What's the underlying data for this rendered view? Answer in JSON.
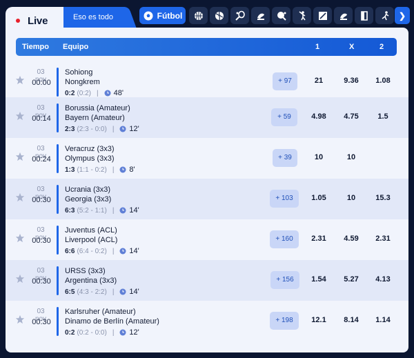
{
  "topbar": {
    "live_label": "Live",
    "eso_label": "Eso es todo",
    "futbol_label": "Fútbol",
    "sports": [
      "soccer-ball-icon",
      "basketball-icon",
      "volleyball-icon",
      "tennis-icon",
      "hockey-icon",
      "ping-pong-icon",
      "fencing-icon",
      "esports-icon",
      "baseball-icon",
      "handball-icon",
      "cricket-icon"
    ]
  },
  "header": {
    "tiempo": "Tiempo",
    "equipo": "Equipo",
    "col1": "1",
    "colx": "X",
    "col2": "2"
  },
  "matches": [
    {
      "date": "03 nov",
      "time": "00:00",
      "team1": "Sohiong",
      "team2": "Nongkrem",
      "score": "0:2",
      "score_detail": "(0:2)",
      "minute": "48'",
      "more": "+ 97",
      "odd1": "21",
      "oddx": "9.36",
      "odd2": "1.08"
    },
    {
      "date": "03 nov",
      "time": "00:14",
      "team1": "Borussia (Amateur)",
      "team2": "Bayern (Amateur)",
      "score": "2:3",
      "score_detail": "(2:3 - 0:0)",
      "minute": "12'",
      "more": "+ 59",
      "odd1": "4.98",
      "oddx": "4.75",
      "odd2": "1.5"
    },
    {
      "date": "03 nov",
      "time": "00:24",
      "team1": "Veracruz (3x3)",
      "team2": "Olympus (3x3)",
      "score": "1:3",
      "score_detail": "(1:1 - 0:2)",
      "minute": "8'",
      "more": "+ 39",
      "odd1": "10",
      "oddx": "10",
      "odd2": ""
    },
    {
      "date": "03 nov",
      "time": "00:30",
      "team1": "Ucrania (3x3)",
      "team2": "Georgia (3x3)",
      "score": "6:3",
      "score_detail": "(5:2 - 1:1)",
      "minute": "14'",
      "more": "+ 103",
      "odd1": "1.05",
      "oddx": "10",
      "odd2": "15.3"
    },
    {
      "date": "03 nov",
      "time": "00:30",
      "team1": "Juventus (ACL)",
      "team2": "Liverpool (ACL)",
      "score": "6:6",
      "score_detail": "(6:4 - 0:2)",
      "minute": "14'",
      "more": "+ 160",
      "odd1": "2.31",
      "oddx": "4.59",
      "odd2": "2.31"
    },
    {
      "date": "03 nov",
      "time": "00:30",
      "team1": "URSS (3x3)",
      "team2": "Argentina (3x3)",
      "score": "6:5",
      "score_detail": "(4:3 - 2:2)",
      "minute": "14'",
      "more": "+ 156",
      "odd1": "1.54",
      "oddx": "5.27",
      "odd2": "4.13"
    },
    {
      "date": "03 nov",
      "time": "00:30",
      "team1": "Karlsruher (Amateur)",
      "team2": "Dinamo de Berlín (Amateur)",
      "score": "0:2",
      "score_detail": "(0:2 - 0:0)",
      "minute": "12'",
      "more": "+ 198",
      "odd1": "12.1",
      "oddx": "8.14",
      "odd2": "1.14"
    }
  ],
  "colors": {
    "accent": "#1e66e8",
    "background": "#0b1631",
    "panel": "#f1f4fc",
    "alt_row": "#e2e8f8"
  }
}
